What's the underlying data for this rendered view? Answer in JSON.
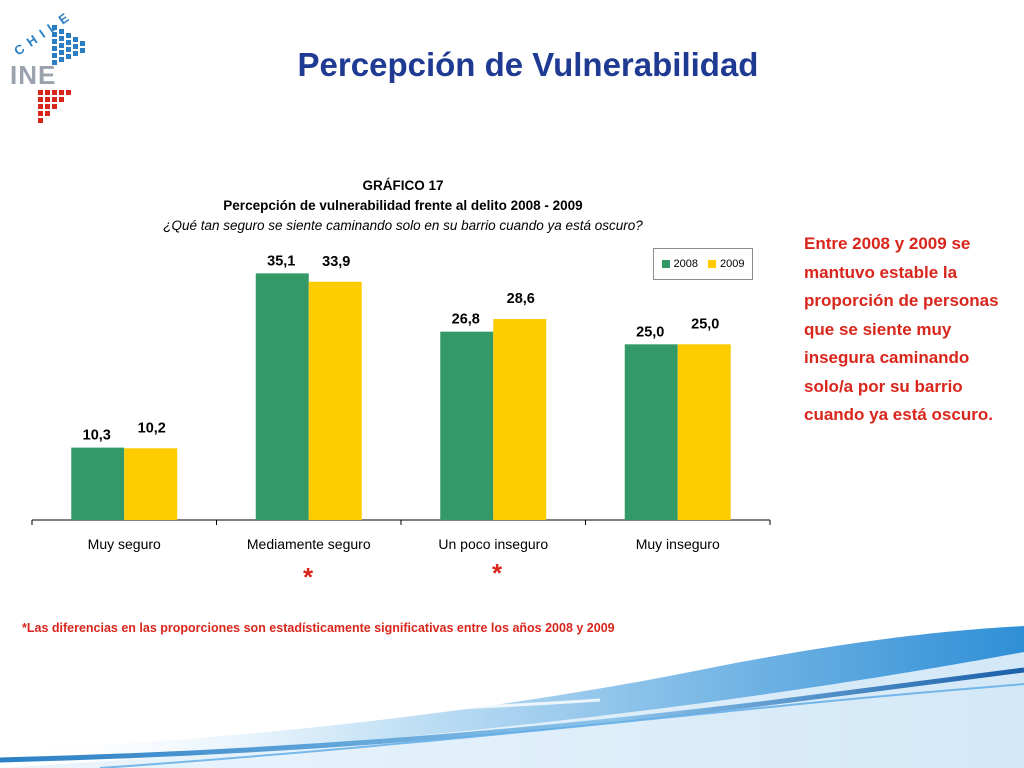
{
  "logo": {
    "text": "INE",
    "country": "CHILE"
  },
  "slide": {
    "title": "Percepción de Vulnerabilidad"
  },
  "chart_data": {
    "type": "bar",
    "chart_label": "GRÁFICO 17",
    "title": "Percepción de vulnerabilidad frente al delito 2008 - 2009",
    "subtitle": "¿Qué tan seguro se siente caminando solo en su barrio cuando ya está oscuro?",
    "categories": [
      "Muy seguro",
      "Mediamente seguro",
      "Un poco inseguro",
      "Muy inseguro"
    ],
    "series": [
      {
        "name": "2008",
        "values": [
          10.3,
          35.1,
          26.8,
          25.0
        ],
        "labels": [
          "10,3",
          "35,1",
          "26,8",
          "25,0"
        ],
        "color": "#339966"
      },
      {
        "name": "2009",
        "values": [
          10.2,
          33.9,
          28.6,
          25.0
        ],
        "labels": [
          "10,2",
          "33,9",
          "28,6",
          "25,0"
        ],
        "color": "#ffcc00"
      }
    ],
    "ylim": [
      0,
      37
    ],
    "grid": false,
    "legend_position": "top-right",
    "significance_markers": [
      "",
      "*",
      "*",
      ""
    ]
  },
  "side_note": "Entre 2008 y 2009 se mantuvo estable la proporción de personas que se siente muy insegura caminando solo/a por su barrio cuando ya está oscuro.",
  "footnote": "*Las diferencias en las proporciones son estadísticamente significativas entre los años 2008 y 2009",
  "colors": {
    "title": "#1f3a93",
    "accent_red": "#d9261c",
    "series_2008": "#339966",
    "series_2009": "#ffcc00",
    "logo_blue": "#2a7fc4"
  }
}
